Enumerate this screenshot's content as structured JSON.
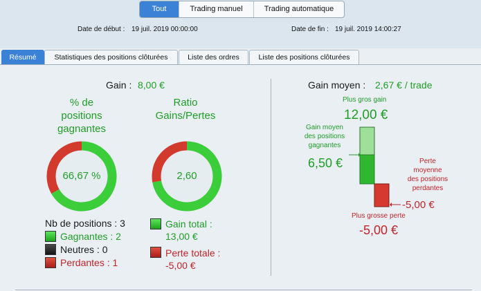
{
  "header": {
    "segments": [
      {
        "label": "Tout",
        "active": true
      },
      {
        "label": "Trading manuel",
        "active": false
      },
      {
        "label": "Trading automatique",
        "active": false
      }
    ],
    "start_label": "Date de début :",
    "start_value": "19 juil. 2019 00:00:00",
    "end_label": "Date de fin :",
    "end_value": "19 juil. 2019 14:00:27"
  },
  "tabs": [
    {
      "label": "Résumé",
      "active": true
    },
    {
      "label": "Statistiques des positions clôturées",
      "active": false
    },
    {
      "label": "Liste des ordres",
      "active": false
    },
    {
      "label": "Liste des positions clôturées",
      "active": false
    }
  ],
  "summary": {
    "gain_label": "Gain :",
    "gain_value": "8,00 €",
    "winning": {
      "title_lines": [
        "% de",
        "positions",
        "gagnantes"
      ],
      "value": "66,67 %",
      "fraction": 0.6667
    },
    "ratio": {
      "title_lines": [
        "Ratio",
        "Gains/Pertes"
      ],
      "value": "2,60",
      "fraction": 0.7222
    },
    "positions": {
      "count_label": "Nb de positions : 3",
      "winners": "Gagnantes : 2",
      "neutral": "Neutres : 0",
      "losers": "Perdantes : 1"
    },
    "totals": {
      "gain_label": "Gain total :",
      "gain_value": "13,00 €",
      "loss_label": "Perte totale :",
      "loss_value": "-5,00 €"
    }
  },
  "average": {
    "label": "Gain moyen :",
    "value": "2,67 € / trade",
    "max_gain_label": "Plus gros gain",
    "max_gain_value": "12,00 €",
    "avg_win_lines": [
      "Gain moyen",
      "des positions",
      "gagnantes"
    ],
    "avg_win_value": "6,50 €",
    "avg_loss_lines": [
      "Perte",
      "moyenne",
      "des positions",
      "perdantes"
    ],
    "avg_loss_value": "-5,00 €",
    "max_loss_label": "Plus grosse perte",
    "max_loss_value": "-5,00 €"
  },
  "colors": {
    "accent": "#3b82d6",
    "gain": "#1f9e27",
    "loss": "#c4232a"
  }
}
